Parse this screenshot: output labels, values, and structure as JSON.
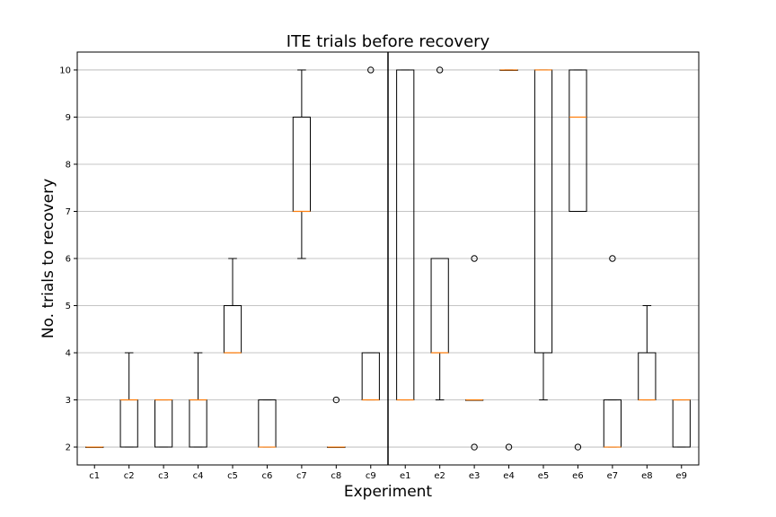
{
  "chart_data": {
    "type": "box",
    "title": "ITE trials before recovery",
    "xlabel": "Experiment",
    "ylabel": "No. trials to recovery",
    "ylim": [
      1.62,
      10.38
    ],
    "yticks": [
      "2",
      "3",
      "4",
      "5",
      "6",
      "7",
      "8",
      "9",
      "10"
    ],
    "grid": "horizontal",
    "divider_after": "c9",
    "colors": {
      "box": "#000000",
      "median": "#ff7f0e",
      "grid": "#b0b0b0"
    },
    "categories": [
      "c1",
      "c2",
      "c3",
      "c4",
      "c5",
      "c6",
      "c7",
      "c8",
      "c9",
      "e1",
      "e2",
      "e3",
      "e4",
      "e5",
      "e6",
      "e7",
      "e8",
      "e9"
    ],
    "boxes": [
      {
        "label": "c1",
        "q1": 2,
        "median": 2,
        "q3": 2,
        "whisker_low": 2,
        "whisker_high": 2,
        "outliers": []
      },
      {
        "label": "c2",
        "q1": 2,
        "median": 3,
        "q3": 3,
        "whisker_low": 2,
        "whisker_high": 4,
        "outliers": []
      },
      {
        "label": "c3",
        "q1": 2,
        "median": 3,
        "q3": 3,
        "whisker_low": 2,
        "whisker_high": 3,
        "outliers": []
      },
      {
        "label": "c4",
        "q1": 2,
        "median": 3,
        "q3": 3,
        "whisker_low": 2,
        "whisker_high": 4,
        "outliers": []
      },
      {
        "label": "c5",
        "q1": 4,
        "median": 4,
        "q3": 5,
        "whisker_low": 4,
        "whisker_high": 6,
        "outliers": []
      },
      {
        "label": "c6",
        "q1": 2,
        "median": 2,
        "q3": 3,
        "whisker_low": 2,
        "whisker_high": 3,
        "outliers": []
      },
      {
        "label": "c7",
        "q1": 7,
        "median": 7,
        "q3": 9,
        "whisker_low": 6,
        "whisker_high": 10,
        "outliers": []
      },
      {
        "label": "c8",
        "q1": 2,
        "median": 2,
        "q3": 2,
        "whisker_low": 2,
        "whisker_high": 2,
        "outliers": [
          3
        ]
      },
      {
        "label": "c9",
        "q1": 3,
        "median": 3,
        "q3": 4,
        "whisker_low": 3,
        "whisker_high": 4,
        "outliers": [
          10
        ]
      },
      {
        "label": "e1",
        "q1": 3,
        "median": 3,
        "q3": 10,
        "whisker_low": 3,
        "whisker_high": 10,
        "outliers": []
      },
      {
        "label": "e2",
        "q1": 4,
        "median": 4,
        "q3": 6,
        "whisker_low": 3,
        "whisker_high": 6,
        "outliers": [
          10
        ]
      },
      {
        "label": "e3",
        "q1": 3,
        "median": 3,
        "q3": 3,
        "whisker_low": 3,
        "whisker_high": 3,
        "outliers": [
          6,
          2
        ]
      },
      {
        "label": "e4",
        "q1": 10,
        "median": 10,
        "q3": 10,
        "whisker_low": 10,
        "whisker_high": 10,
        "outliers": [
          2
        ]
      },
      {
        "label": "e5",
        "q1": 4,
        "median": 10,
        "q3": 10,
        "whisker_low": 3,
        "whisker_high": 10,
        "outliers": []
      },
      {
        "label": "e6",
        "q1": 7,
        "median": 9,
        "q3": 10,
        "whisker_low": 7,
        "whisker_high": 10,
        "outliers": [
          2
        ]
      },
      {
        "label": "e7",
        "q1": 2,
        "median": 2,
        "q3": 3,
        "whisker_low": 2,
        "whisker_high": 3,
        "outliers": [
          6
        ]
      },
      {
        "label": "e8",
        "q1": 3,
        "median": 3,
        "q3": 4,
        "whisker_low": 3,
        "whisker_high": 5,
        "outliers": []
      },
      {
        "label": "e9",
        "q1": 2,
        "median": 3,
        "q3": 3,
        "whisker_low": 2,
        "whisker_high": 3,
        "outliers": []
      }
    ]
  }
}
